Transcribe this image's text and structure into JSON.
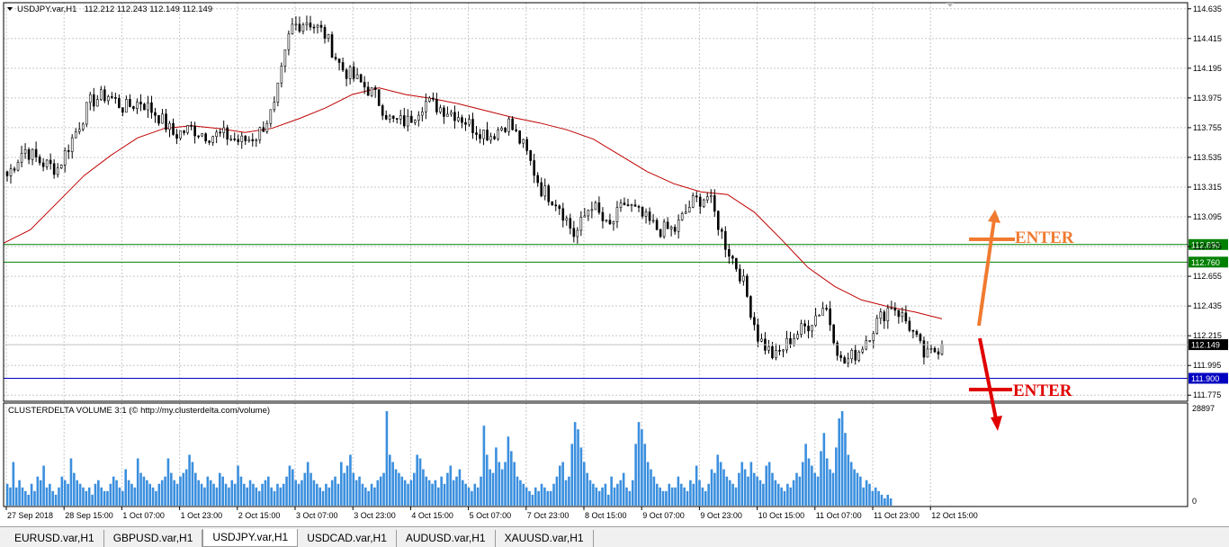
{
  "window": {
    "title": "USDJPY.var,H1",
    "ohlc": "112.212 112.243 112.149 112.149"
  },
  "indicator": {
    "title": "CLUSTERDELTA VOLUME 3:1 (© http://my.clusterdelta.com/volume)",
    "max_label": "28897",
    "zero_label": "0"
  },
  "tabs": [
    {
      "label": "EURUSD.var,H1",
      "active": false
    },
    {
      "label": "GBPUSD.var,H1",
      "active": false
    },
    {
      "label": "USDJPY.var,H1",
      "active": true
    },
    {
      "label": "USDCAD.var,H1",
      "active": false
    },
    {
      "label": "AUDUSD.var,H1",
      "active": false
    },
    {
      "label": "XAUUSD.var,H1",
      "active": false
    }
  ],
  "annotations": {
    "enter_top": "ENTER",
    "enter_bottom": "ENTER"
  },
  "colors": {
    "candle": "#000000",
    "ma": "#c00000",
    "level_green": "#008000",
    "level_blue": "#0000c0",
    "volume": "#3b8fde",
    "arrow_up": "#f07a30",
    "arrow_down": "#e00000",
    "price_marker": "#000000"
  },
  "chart_data": {
    "type": "candlestick",
    "symbol": "USDJPY.var",
    "timeframe": "H1",
    "y_ticks": [
      "114.635",
      "114.415",
      "114.195",
      "113.975",
      "113.755",
      "113.535",
      "113.315",
      "113.095",
      "112.875",
      "112.655",
      "112.435",
      "112.215",
      "111.995",
      "111.775"
    ],
    "ylim": [
      111.73,
      114.68
    ],
    "x_ticks": [
      "27 Sep 2018",
      "28 Sep 15:00",
      "1 Oct 07:00",
      "1 Oct 23:00",
      "2 Oct 15:00",
      "3 Oct 07:00",
      "3 Oct 23:00",
      "4 Oct 15:00",
      "5 Oct 07:00",
      "7 Oct 23:00",
      "8 Oct 15:00",
      "9 Oct 07:00",
      "9 Oct 23:00",
      "10 Oct 15:00",
      "11 Oct 07:00",
      "11 Oct 23:00",
      "12 Oct 15:00"
    ],
    "price_path": [
      113.4,
      113.6,
      113.5,
      113.45,
      113.7,
      113.95,
      114.0,
      113.9,
      113.95,
      113.85,
      113.7,
      113.75,
      113.7,
      113.7,
      113.65,
      113.7,
      113.9,
      114.5,
      114.55,
      114.45,
      114.2,
      114.1,
      114.0,
      113.8,
      113.8,
      113.95,
      113.9,
      113.85,
      113.75,
      113.7,
      113.8,
      113.6,
      113.3,
      113.2,
      112.95,
      113.2,
      113.0,
      113.2,
      113.1,
      113.0,
      113.0,
      113.2,
      113.25,
      112.9,
      112.65,
      112.2,
      112.05,
      112.2,
      112.3,
      112.45,
      112.0,
      112.1,
      112.3,
      112.45,
      112.3,
      112.05,
      112.15
    ],
    "ma_path": [
      112.9,
      113.0,
      113.2,
      113.4,
      113.55,
      113.68,
      113.75,
      113.77,
      113.75,
      113.72,
      113.75,
      113.82,
      113.9,
      114.0,
      114.05,
      114.0,
      113.97,
      113.93,
      113.88,
      113.83,
      113.79,
      113.74,
      113.67,
      113.55,
      113.43,
      113.34,
      113.28,
      113.26,
      113.13,
      112.93,
      112.72,
      112.58,
      112.48,
      112.43,
      112.39,
      112.34
    ],
    "levels": [
      {
        "price": 112.89,
        "label": "112.890",
        "color": "green"
      },
      {
        "price": 112.76,
        "label": "112.760",
        "color": "green"
      },
      {
        "price": 111.9,
        "label": "111.900",
        "color": "blue"
      }
    ],
    "current_price": {
      "price": 112.149,
      "label": "112.149"
    },
    "volume": {
      "max": 28897,
      "values": [
        6,
        5,
        12,
        5,
        7,
        5,
        4,
        3,
        6,
        4,
        8,
        7,
        11,
        5,
        6,
        4,
        3,
        5,
        8,
        7,
        6,
        13,
        9,
        7,
        6,
        5,
        4,
        5,
        3,
        6,
        7,
        5,
        4,
        4,
        6,
        8,
        7,
        5,
        4,
        10,
        7,
        6,
        5,
        13,
        9,
        8,
        7,
        6,
        5,
        4,
        6,
        7,
        8,
        13,
        9,
        7,
        6,
        8,
        9,
        10,
        14,
        12,
        9,
        7,
        6,
        5,
        8,
        7,
        6,
        5,
        9,
        8,
        6,
        5,
        7,
        6,
        11,
        8,
        6,
        5,
        7,
        6,
        5,
        4,
        6,
        7,
        8,
        5,
        4,
        6,
        5,
        6,
        8,
        11,
        10,
        7,
        6,
        7,
        9,
        12,
        9,
        7,
        6,
        5,
        4,
        6,
        5,
        7,
        8,
        6,
        12,
        9,
        11,
        14,
        9,
        7,
        8,
        6,
        5,
        4,
        6,
        5,
        7,
        8,
        9,
        26,
        14,
        12,
        10,
        9,
        8,
        7,
        6,
        7,
        9,
        14,
        13,
        10,
        8,
        7,
        6,
        7,
        5,
        8,
        6,
        9,
        11,
        7,
        8,
        10,
        7,
        6,
        5,
        4,
        6,
        5,
        8,
        22,
        14,
        10,
        9,
        16,
        12,
        10,
        12,
        19,
        15,
        12,
        8,
        7,
        6,
        5,
        4,
        3,
        5,
        4,
        6,
        5,
        4,
        4,
        6,
        8,
        11,
        12,
        7,
        8,
        17,
        23,
        21,
        16,
        12,
        9,
        7,
        6,
        5,
        4,
        5,
        6,
        3,
        8,
        5,
        6,
        7,
        9,
        5,
        4,
        7,
        17,
        23,
        21,
        17,
        12,
        10,
        8,
        6,
        5,
        4,
        4,
        6,
        5,
        5,
        8,
        6,
        5,
        4,
        7,
        6,
        11,
        7,
        5,
        4,
        6,
        10,
        9,
        14,
        12,
        10,
        8,
        7,
        6,
        5,
        9,
        12,
        10,
        8,
        12,
        9,
        8,
        7,
        6,
        11,
        12,
        9,
        7,
        6,
        5,
        4,
        6,
        5,
        7,
        9,
        8,
        12,
        17,
        13,
        11,
        9,
        8,
        15,
        20,
        13,
        10,
        9,
        16,
        24,
        26,
        20,
        14,
        12,
        10,
        9,
        8,
        5,
        7,
        6,
        4,
        5,
        4,
        3,
        2,
        3,
        2
      ]
    }
  }
}
